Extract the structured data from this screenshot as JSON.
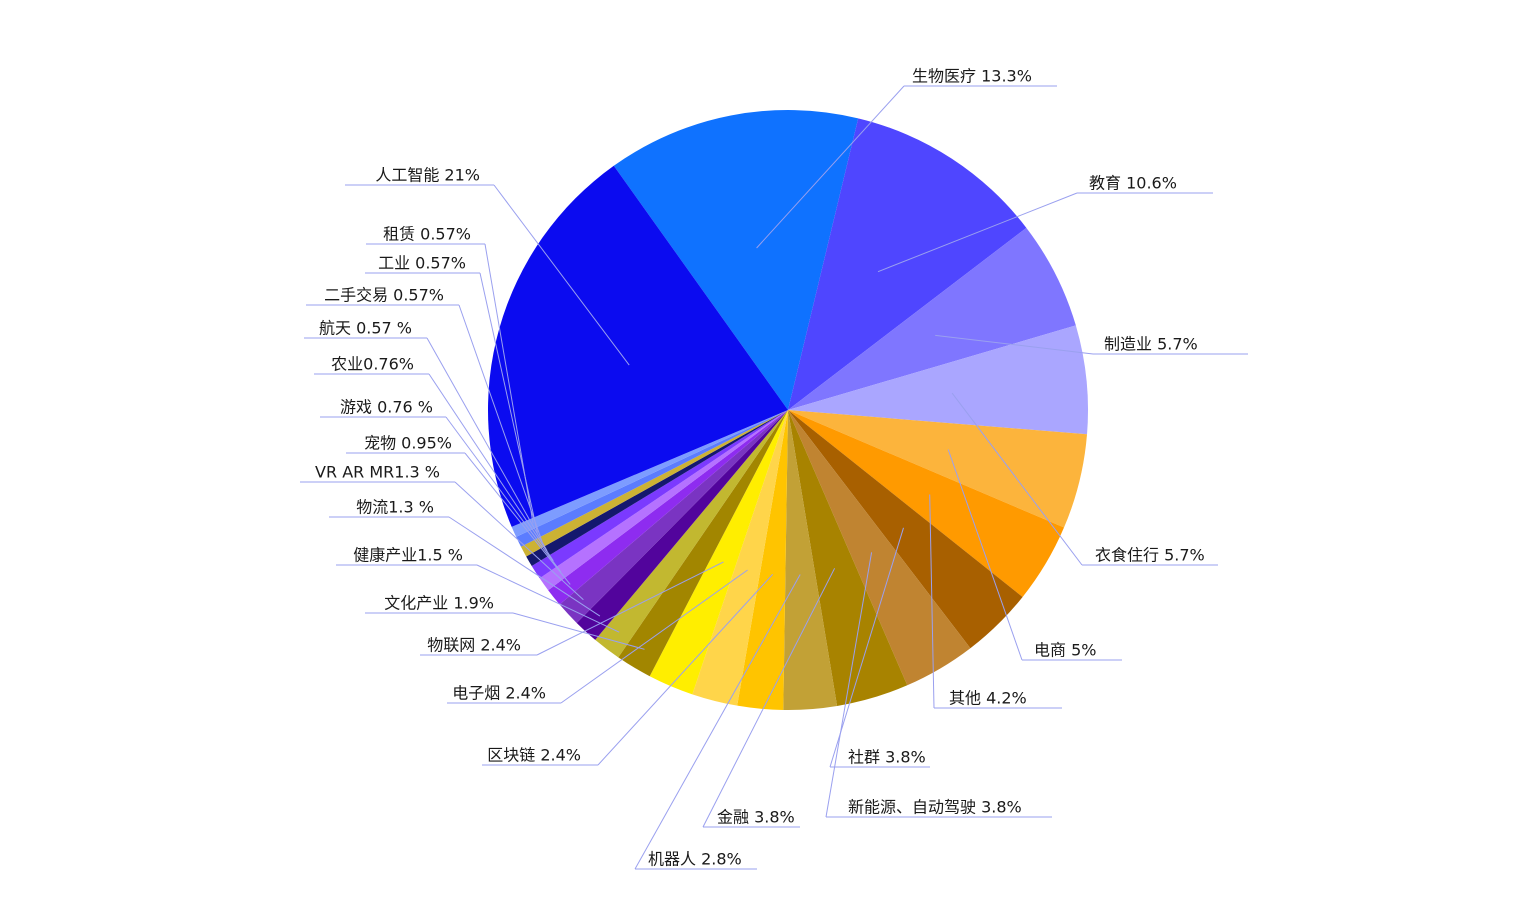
{
  "chart_data": {
    "type": "pie",
    "title": "",
    "slices": [
      {
        "name": "生物医疗",
        "label": "生物医疗 13.3%",
        "value": 13.3,
        "color": "#0f72ff"
      },
      {
        "name": "教育",
        "label": "教育 10.6%",
        "value": 10.6,
        "color": "#4f46ff"
      },
      {
        "name": "制造业",
        "label": "制造业 5.7%",
        "value": 5.7,
        "color": "#7f76ff"
      },
      {
        "name": "衣食住行",
        "label": "衣食住行 5.7%",
        "value": 5.7,
        "color": "#aaa6ff"
      },
      {
        "name": "电商",
        "label": "电商 5%",
        "value": 5.0,
        "color": "#fcb43c"
      },
      {
        "name": "其他",
        "label": "其他 4.2%",
        "value": 4.2,
        "color": "#ff9a00"
      },
      {
        "name": "社群",
        "label": "社群 3.8%",
        "value": 3.8,
        "color": "#a86000"
      },
      {
        "name": "新能源、自动驾驶",
        "label": "新能源、自动驾驶 3.8%",
        "value": 3.8,
        "color": "#c08431"
      },
      {
        "name": "金融",
        "label": "金融 3.8%",
        "value": 3.8,
        "color": "#a88300"
      },
      {
        "name": "机器人",
        "label": "机器人 2.8%",
        "value": 2.8,
        "color": "#c2a136"
      },
      {
        "name": "区块链",
        "label": "区块链 2.4%",
        "value": 2.4,
        "color": "#ffc400"
      },
      {
        "name": "电子烟",
        "label": "电子烟 2.4%",
        "value": 2.4,
        "color": "#ffd54a"
      },
      {
        "name": "物联网",
        "label": "物联网 2.4%",
        "value": 2.4,
        "color": "#ffee00"
      },
      {
        "name": "文化产业",
        "label": "文化产业 1.9%",
        "value": 1.9,
        "color": "#a28600"
      },
      {
        "name": "健康产业",
        "label": "健康产业1.5 %",
        "value": 1.5,
        "color": "#c2b830"
      },
      {
        "name": "物流",
        "label": "物流1.3 %",
        "value": 1.3,
        "color": "#52049c"
      },
      {
        "name": "VR AR MR",
        "label": "VR AR MR1.3 %",
        "value": 1.3,
        "color": "#7a34c2"
      },
      {
        "name": "宠物",
        "label": "宠物 0.95%",
        "value": 0.95,
        "color": "#8e2cf0"
      },
      {
        "name": "游戏",
        "label": "游戏  0.76 %",
        "value": 0.76,
        "color": "#b572ff"
      },
      {
        "name": "农业",
        "label": "农业0.76%",
        "value": 0.76,
        "color": "#7b3aff"
      },
      {
        "name": "航天",
        "label": "航天 0.57 %",
        "value": 0.57,
        "color": "#14186e"
      },
      {
        "name": "二手交易",
        "label": "二手交易 0.57%",
        "value": 0.57,
        "color": "#ccb234"
      },
      {
        "name": "工业",
        "label": "工业 0.57%",
        "value": 0.57,
        "color": "#5b7cff"
      },
      {
        "name": "租赁",
        "label": "租赁 0.57%",
        "value": 0.57,
        "color": "#7d9cff"
      },
      {
        "name": "人工智能",
        "label": "人工智能  21%",
        "value": 21,
        "color": "#0b0bf0"
      }
    ],
    "legend": "none"
  }
}
